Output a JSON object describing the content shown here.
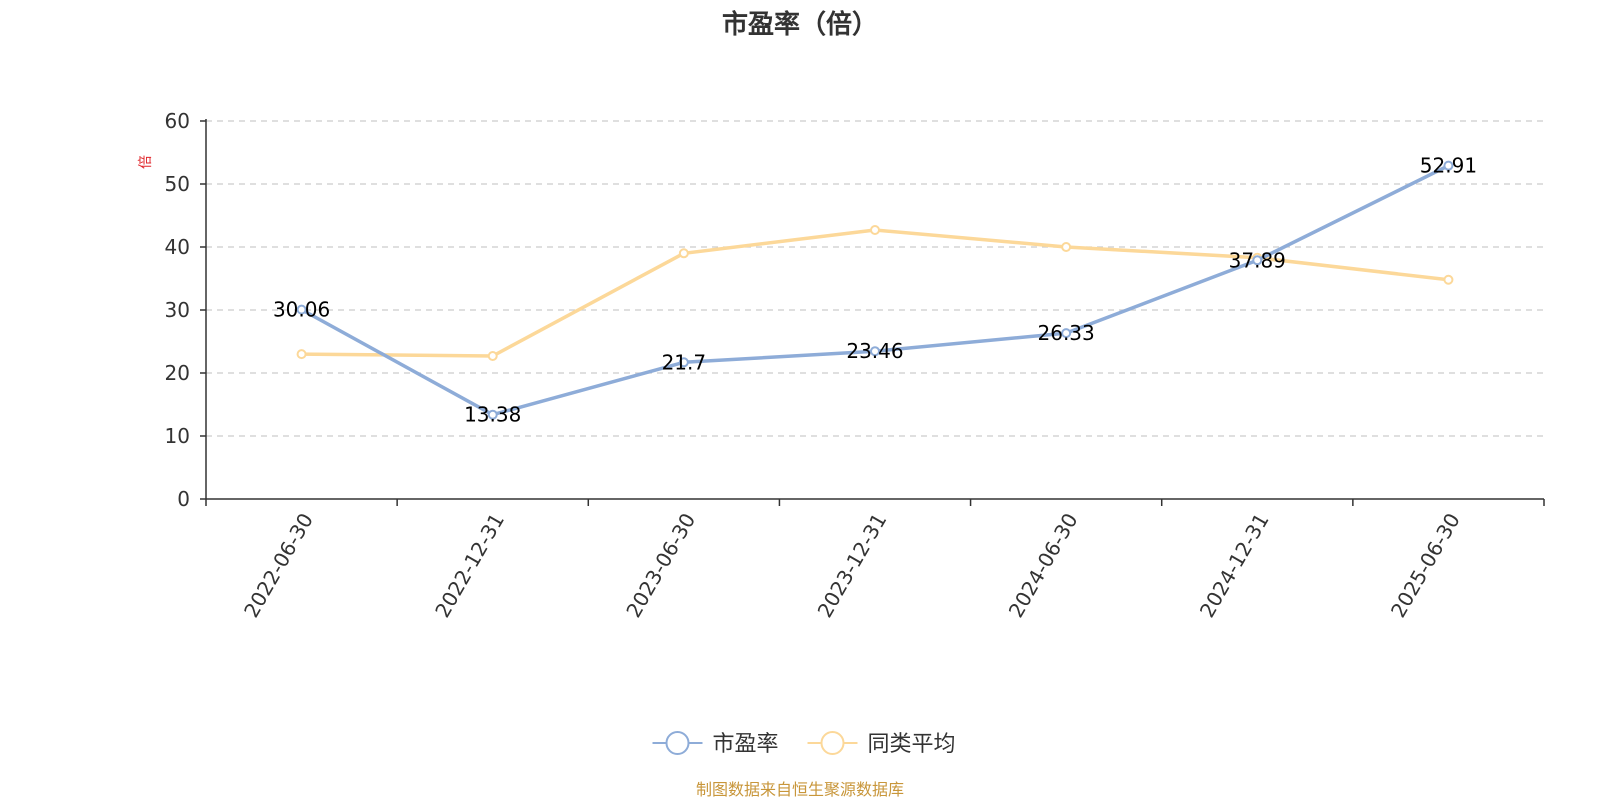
{
  "chart_data": {
    "type": "line",
    "title": "市盈率（倍）",
    "ylabel": "倍",
    "categories": [
      "2022-06-30",
      "2022-12-31",
      "2023-06-30",
      "2023-12-31",
      "2024-06-30",
      "2024-12-31",
      "2025-06-30"
    ],
    "ylim": [
      0,
      60
    ],
    "yticks": [
      0,
      10,
      20,
      30,
      40,
      50,
      60
    ],
    "grid": true,
    "legend_position": "bottom-center",
    "series": [
      {
        "name": "市盈率",
        "color": "#8eacd8",
        "values": [
          30.06,
          13.38,
          21.7,
          23.46,
          26.33,
          37.89,
          52.91
        ],
        "labels": [
          "30.06",
          "13.38",
          "21.7",
          "23.46",
          "26.33",
          "37.89",
          "52.91"
        ]
      },
      {
        "name": "同类平均",
        "color": "#fcd899",
        "values": [
          23.0,
          22.7,
          39.0,
          42.7,
          40.0,
          38.3,
          34.8
        ]
      }
    ]
  },
  "source_text": "制图数据来自恒生聚源数据库",
  "colors": {
    "ylabel": "#e0262b",
    "source": "#c8963a",
    "axis": "#333333",
    "grid": "#cccccc"
  }
}
